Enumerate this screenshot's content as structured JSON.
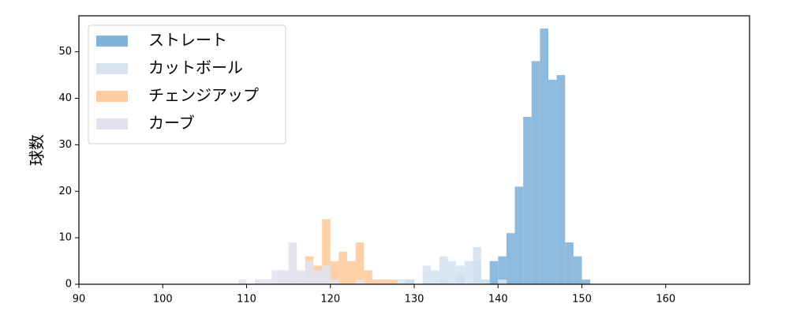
{
  "chart_data": {
    "type": "histogram",
    "ylabel": "球数",
    "xlim": [
      90,
      170
    ],
    "ylim": [
      0,
      57.75
    ],
    "xticks": [
      90,
      100,
      110,
      120,
      130,
      140,
      150,
      160
    ],
    "yticks": [
      0,
      10,
      20,
      30,
      40,
      50
    ],
    "legend": "upper left",
    "series": [
      {
        "name": "ストレート",
        "color": "#82b4d9",
        "bins": [
          129,
          130,
          131,
          132,
          133,
          134,
          135,
          136,
          137,
          138,
          139,
          140,
          141,
          142,
          143,
          144,
          145,
          146,
          147,
          148,
          149,
          150,
          151
        ],
        "values": [
          1,
          0,
          0,
          0,
          1,
          0,
          2,
          0,
          5,
          1,
          5,
          6,
          11,
          21,
          36,
          48,
          55,
          44,
          45,
          9,
          6,
          1
        ]
      },
      {
        "name": "カットボール",
        "color": "#d6e4f2",
        "bins": [
          128,
          129,
          130,
          131,
          132,
          133,
          134,
          135,
          136,
          137,
          138,
          139,
          140,
          141
        ],
        "values": [
          1,
          1,
          0,
          4,
          3,
          6,
          5,
          4,
          5,
          8,
          1,
          0,
          1
        ]
      },
      {
        "name": "チェンジアップ",
        "color": "#fecb9e",
        "bins": [
          114,
          115,
          116,
          117,
          118,
          119,
          120,
          121,
          122,
          123,
          124,
          125,
          126,
          127,
          128
        ],
        "values": [
          1,
          1,
          1,
          6,
          4,
          14,
          5,
          7,
          5,
          9,
          3,
          1,
          1,
          1
        ]
      },
      {
        "name": "カーブ",
        "color": "#e2e2ef",
        "bins": [
          109,
          110,
          111,
          112,
          113,
          114,
          115,
          116,
          117,
          118,
          119,
          120,
          121,
          122,
          123,
          124
        ],
        "values": [
          1,
          0,
          1,
          1,
          3,
          3,
          9,
          3,
          5,
          3,
          4,
          1,
          0,
          0,
          1
        ]
      }
    ]
  }
}
